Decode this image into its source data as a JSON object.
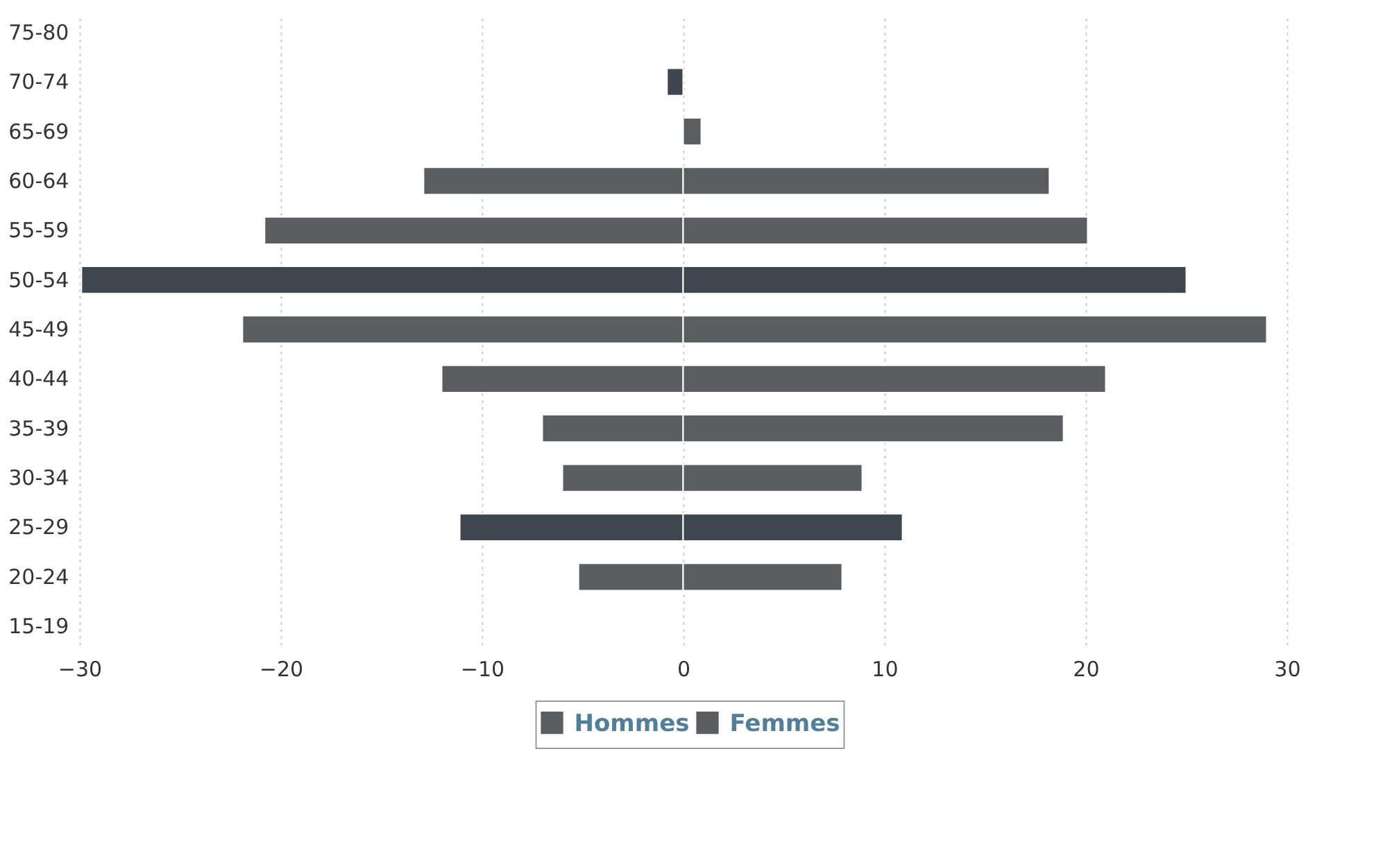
{
  "chart_data": {
    "type": "bar",
    "orientation": "horizontal",
    "stacked": true,
    "categories": [
      "75-80",
      "70-74",
      "65-69",
      "60-64",
      "55-59",
      "50-54",
      "45-49",
      "40-44",
      "35-39",
      "30-34",
      "25-29",
      "20-24",
      "15-19"
    ],
    "series": [
      {
        "name": "Hommes",
        "color": "#5b5d60",
        "colors": [
          "#5b5d60",
          "#3f4650",
          "#5b5d60",
          "#5b5d60",
          "#5b5d60",
          "#3f4650",
          "#5b5d60",
          "#5b5d60",
          "#5b5d60",
          "#5b5d60",
          "#3f4650",
          "#5b5d60",
          "#5b5d60"
        ],
        "values": [
          null,
          -0.8,
          null,
          -12.9,
          -20.8,
          -29.9,
          -21.9,
          -12,
          -7,
          -6,
          -11.1,
          -5.2,
          null
        ]
      },
      {
        "name": "Femmes",
        "color": "#5b5d60",
        "colors": [
          "#5b5d60",
          "#5b5d60",
          "#5b5d60",
          "#5b5d60",
          "#5b5d60",
          "#3f4650",
          "#5b5d60",
          "#5b5d60",
          "#5b5d60",
          "#5b5d60",
          "#3f4650",
          "#5b5d60",
          "#5b5d60"
        ],
        "values": [
          null,
          null,
          0.9,
          18.2,
          20.1,
          25,
          29,
          21,
          18.9,
          8.9,
          10.9,
          7.9,
          null
        ]
      }
    ],
    "xlim": [
      -30,
      30
    ],
    "xticks": [
      -30,
      -20,
      -10,
      0,
      10,
      20,
      30
    ],
    "grid": "x",
    "legend": "bottom"
  }
}
